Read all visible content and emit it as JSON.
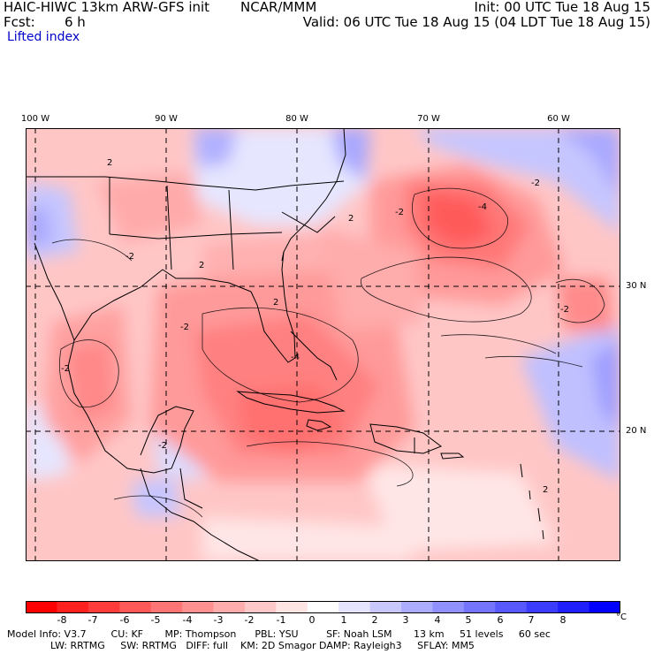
{
  "header": {
    "model": "HAIC-HIWC 13km ARW-GFS init",
    "org": "NCAR/MMM",
    "init": "Init: 00 UTC Tue 18 Aug 15",
    "fcst_label": "Fcst:",
    "fcst_value": "6 h",
    "valid": "Valid: 06 UTC Tue 18 Aug 15 (04 LDT Tue 18 Aug 15)",
    "field": "Lifted index"
  },
  "axes": {
    "lon_labels": [
      "100 W",
      "90 W",
      "80 W",
      "70 W",
      "60 W"
    ],
    "lat_labels": [
      "30 N",
      "20 N"
    ]
  },
  "contour_labels": [
    "2",
    "2",
    "-2",
    "2",
    "-2",
    "2",
    "-2",
    "-4",
    "-2",
    "-4",
    "-2",
    "-2",
    "-2",
    "2"
  ],
  "colorbar": {
    "ticks": [
      "-8",
      "-7",
      "-6",
      "-5",
      "-4",
      "-3",
      "-2",
      "-1",
      "0",
      "1",
      "2",
      "3",
      "4",
      "5",
      "6",
      "7",
      "8"
    ],
    "unit": "°C",
    "colors": [
      "#ff0000",
      "#ff2020",
      "#ff3c3c",
      "#ff5858",
      "#ff7474",
      "#ff9090",
      "#ffacac",
      "#ffc8c8",
      "#ffe4e4",
      "#ffffff",
      "#e4e4ff",
      "#c8c8ff",
      "#acacff",
      "#9090ff",
      "#7474ff",
      "#5858ff",
      "#3c3cff",
      "#2020ff",
      "#0000ff"
    ]
  },
  "footer": {
    "line1": "Model Info: V3.7        CU: KF       MP: Thompson      PBL: YSU         SF: Noah LSM       13 km     51 levels     60 sec",
    "line2": "              LW: RRTMG     SW: RRTMG   DIFF: full    KM: 2D Smagor DAMP: Rayleigh3     SFLAY: MM5"
  }
}
